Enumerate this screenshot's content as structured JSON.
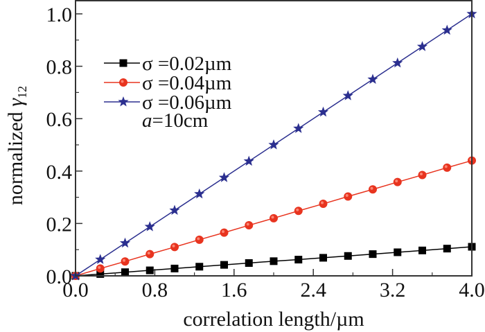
{
  "chart_data": {
    "type": "line",
    "title": "",
    "xlabel": "correlation length/µm",
    "ylabel_main": "normalized ",
    "ylabel_symbol": "γ",
    "ylabel_subscript": "12",
    "xlim": [
      0,
      4.0
    ],
    "ylim": [
      0,
      1.0
    ],
    "x_ticks": [
      0.0,
      0.8,
      1.6,
      2.4,
      3.2,
      4.0
    ],
    "x_tick_labels": [
      "0.0",
      "0.8",
      "1.6",
      "2.4",
      "3.2",
      "4.0"
    ],
    "x_minor_step": 0.4,
    "y_ticks": [
      0.0,
      0.2,
      0.4,
      0.6,
      0.8,
      1.0
    ],
    "y_tick_labels": [
      "0.0",
      "0.2",
      "0.4",
      "0.6",
      "0.8",
      "1.0"
    ],
    "y_minor_step": 0.1,
    "grid": false,
    "legend_position": "top-left",
    "annotation": {
      "italic": "a",
      "text": "=10cm"
    },
    "x": [
      0,
      0.25,
      0.5,
      0.75,
      1.0,
      1.25,
      1.5,
      1.75,
      2.0,
      2.25,
      2.5,
      2.75,
      3.0,
      3.25,
      3.5,
      3.75,
      4.0
    ],
    "series": [
      {
        "name": "σ =0.02µm",
        "color": "#000000",
        "marker": "square",
        "values": [
          0,
          0.007,
          0.014,
          0.021,
          0.028,
          0.035,
          0.042,
          0.049,
          0.056,
          0.062,
          0.069,
          0.076,
          0.083,
          0.09,
          0.097,
          0.104,
          0.111
        ]
      },
      {
        "name": "σ =0.04µm",
        "color": "#e8341f",
        "marker": "circle",
        "values": [
          0,
          0.028,
          0.055,
          0.083,
          0.11,
          0.138,
          0.165,
          0.193,
          0.22,
          0.248,
          0.275,
          0.303,
          0.33,
          0.358,
          0.385,
          0.413,
          0.44
        ]
      },
      {
        "name": "σ =0.06µm",
        "color": "#2b2f8f",
        "marker": "star",
        "values": [
          0,
          0.0625,
          0.125,
          0.1875,
          0.25,
          0.3125,
          0.375,
          0.4375,
          0.5,
          0.5625,
          0.625,
          0.6875,
          0.75,
          0.8125,
          0.875,
          0.9375,
          1.0
        ]
      }
    ]
  }
}
